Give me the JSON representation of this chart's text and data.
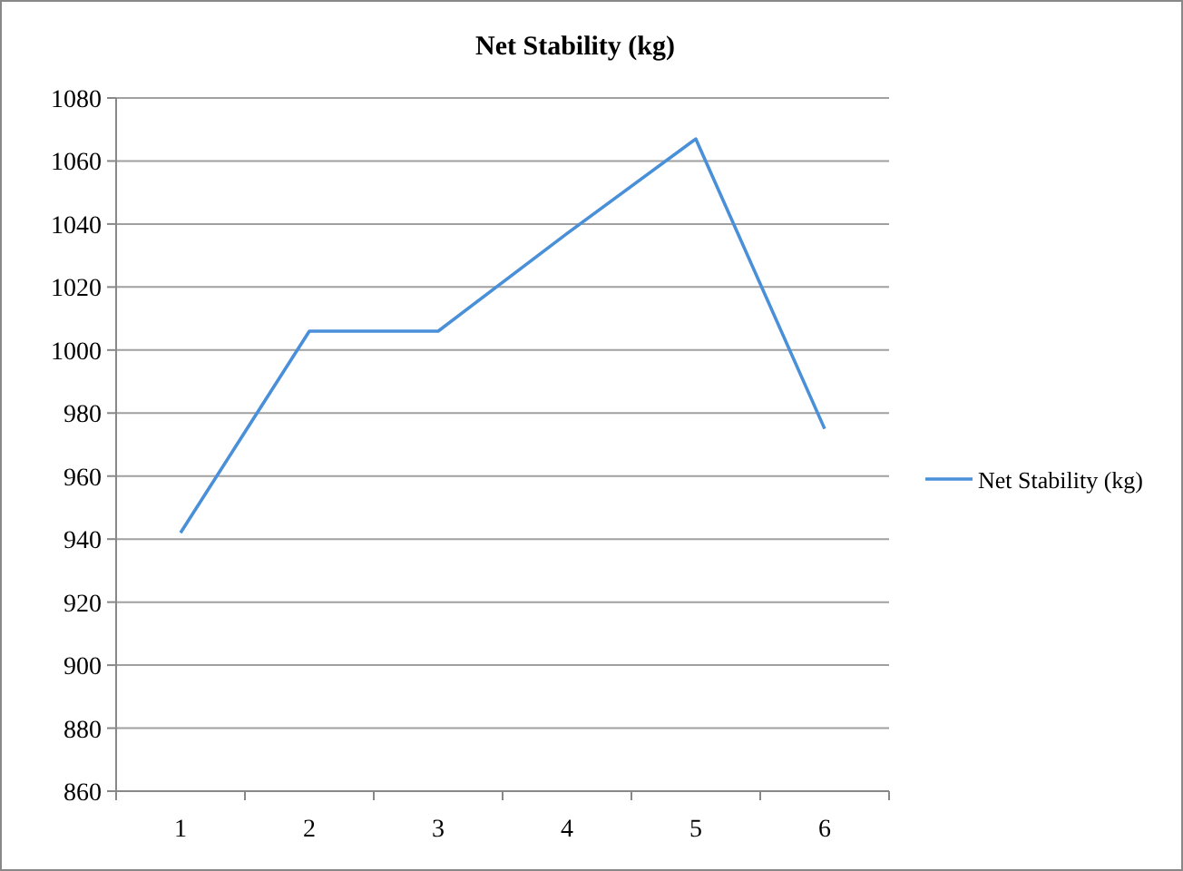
{
  "chart_data": {
    "type": "line",
    "title": "Net Stability  (kg)",
    "categories": [
      "1",
      "2",
      "3",
      "4",
      "5",
      "6"
    ],
    "series": [
      {
        "name": "Net Stability (kg)",
        "color": "#4a90d9",
        "values": [
          942,
          1006,
          1006,
          1037,
          1067,
          975
        ]
      }
    ],
    "ylim": [
      860,
      1080
    ],
    "yticks": [
      860,
      880,
      900,
      920,
      940,
      960,
      980,
      1000,
      1020,
      1040,
      1060,
      1080
    ],
    "grid": "y",
    "legend": "right",
    "marker": "none",
    "line_style": "solid"
  }
}
